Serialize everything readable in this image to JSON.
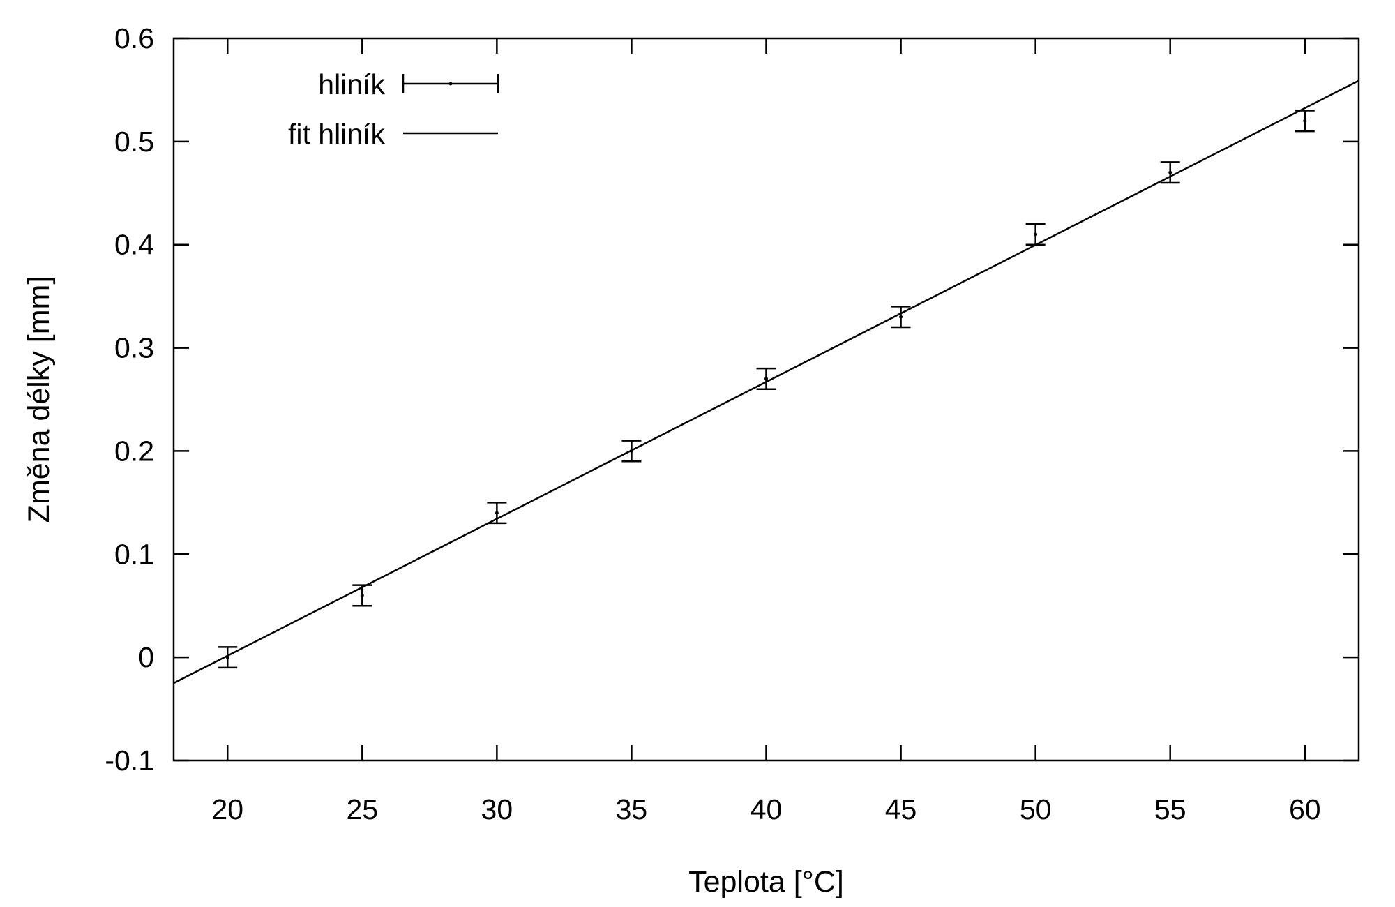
{
  "chart_data": {
    "type": "scatter",
    "title": "",
    "xlabel": "Teplota [°C]",
    "ylabel": "Změna délky [mm]",
    "xlim": [
      18,
      62
    ],
    "ylim": [
      -0.1,
      0.6
    ],
    "x_ticks": [
      "20",
      "25",
      "30",
      "35",
      "40",
      "45",
      "50",
      "55",
      "60"
    ],
    "y_ticks": [
      "-0.1",
      "0",
      "0.1",
      "0.2",
      "0.3",
      "0.4",
      "0.5",
      "0.6"
    ],
    "grid": false,
    "legend_position": "top-left",
    "series": [
      {
        "name": "hliník",
        "kind": "errorbars",
        "x": [
          20,
          25,
          30,
          35,
          40,
          45,
          50,
          55,
          60
        ],
        "y": [
          0.0,
          0.06,
          0.14,
          0.2,
          0.27,
          0.33,
          0.41,
          0.47,
          0.52
        ],
        "y_error": 0.01,
        "color": "#000000"
      },
      {
        "name": "fit hliník",
        "kind": "line",
        "x": [
          18,
          62
        ],
        "y": [
          -0.025,
          0.559
        ],
        "color": "#000000"
      }
    ]
  }
}
